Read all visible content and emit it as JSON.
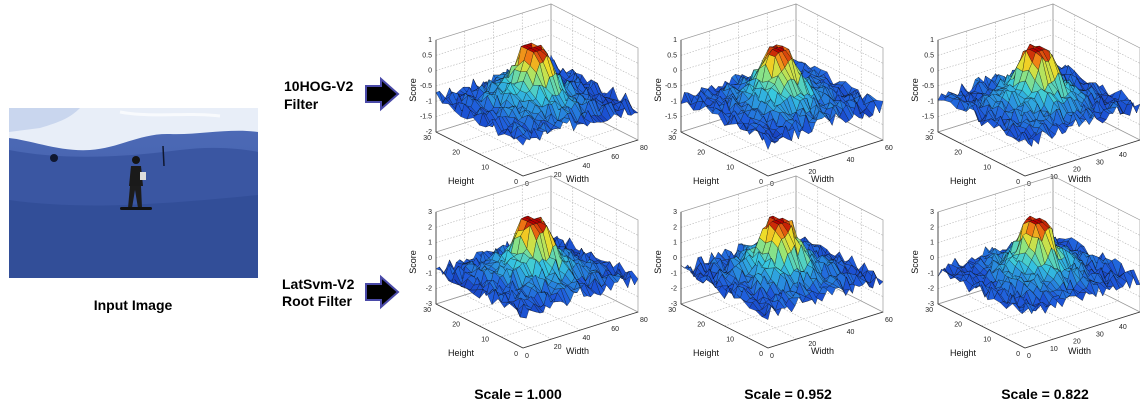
{
  "input_caption": "Input Image",
  "rows": [
    {
      "label_line1": "10HOG-V2",
      "label_line2": "Filter"
    },
    {
      "label_line1": "LatSvm-V2",
      "label_line2": "Root Filter"
    }
  ],
  "columns": [
    {
      "scale_label": "Scale = 1.000"
    },
    {
      "scale_label": "Scale = 0.952"
    },
    {
      "scale_label": "Scale = 0.822"
    }
  ],
  "axis_titles": {
    "z": "Score",
    "y": "Height",
    "x": "Width"
  },
  "plots": [
    {
      "id": "r0c0",
      "z_ticks": [
        "1",
        "0.5",
        "0",
        "-0.5",
        "-1",
        "-1.5",
        "-2"
      ],
      "height_ticks": [
        "30",
        "20",
        "10",
        "0"
      ],
      "width_ticks": [
        "0",
        "20",
        "40",
        "60",
        "80"
      ]
    },
    {
      "id": "r0c1",
      "z_ticks": [
        "1",
        "0.5",
        "0",
        "-0.5",
        "-1",
        "-1.5",
        "-2"
      ],
      "height_ticks": [
        "30",
        "20",
        "10",
        "0"
      ],
      "width_ticks": [
        "0",
        "20",
        "40",
        "60"
      ]
    },
    {
      "id": "r0c2",
      "z_ticks": [
        "1",
        "0.5",
        "0",
        "-0.5",
        "-1",
        "-1.5",
        "-2"
      ],
      "height_ticks": [
        "30",
        "20",
        "10",
        "0"
      ],
      "width_ticks": [
        "0",
        "10",
        "20",
        "30",
        "40",
        "50"
      ]
    },
    {
      "id": "r1c0",
      "z_ticks": [
        "3",
        "2",
        "1",
        "0",
        "-1",
        "-2",
        "-3"
      ],
      "height_ticks": [
        "30",
        "20",
        "10",
        "0"
      ],
      "width_ticks": [
        "0",
        "20",
        "40",
        "60",
        "80"
      ]
    },
    {
      "id": "r1c1",
      "z_ticks": [
        "3",
        "2",
        "1",
        "0",
        "-1",
        "-2",
        "-3"
      ],
      "height_ticks": [
        "30",
        "20",
        "10",
        "0"
      ],
      "width_ticks": [
        "0",
        "20",
        "40",
        "60"
      ]
    },
    {
      "id": "r1c2",
      "z_ticks": [
        "3",
        "2",
        "1",
        "0",
        "-1",
        "-2",
        "-3"
      ],
      "height_ticks": [
        "30",
        "20",
        "10",
        "0"
      ],
      "width_ticks": [
        "0",
        "10",
        "20",
        "30",
        "40",
        "50"
      ]
    }
  ],
  "colors": {
    "surface_low": "#0a1f8c",
    "surface_mid": "#36c8e0",
    "surface_high": "#b80000",
    "arrow": "#000000",
    "arrow_outline": "#4a4aa8"
  }
}
